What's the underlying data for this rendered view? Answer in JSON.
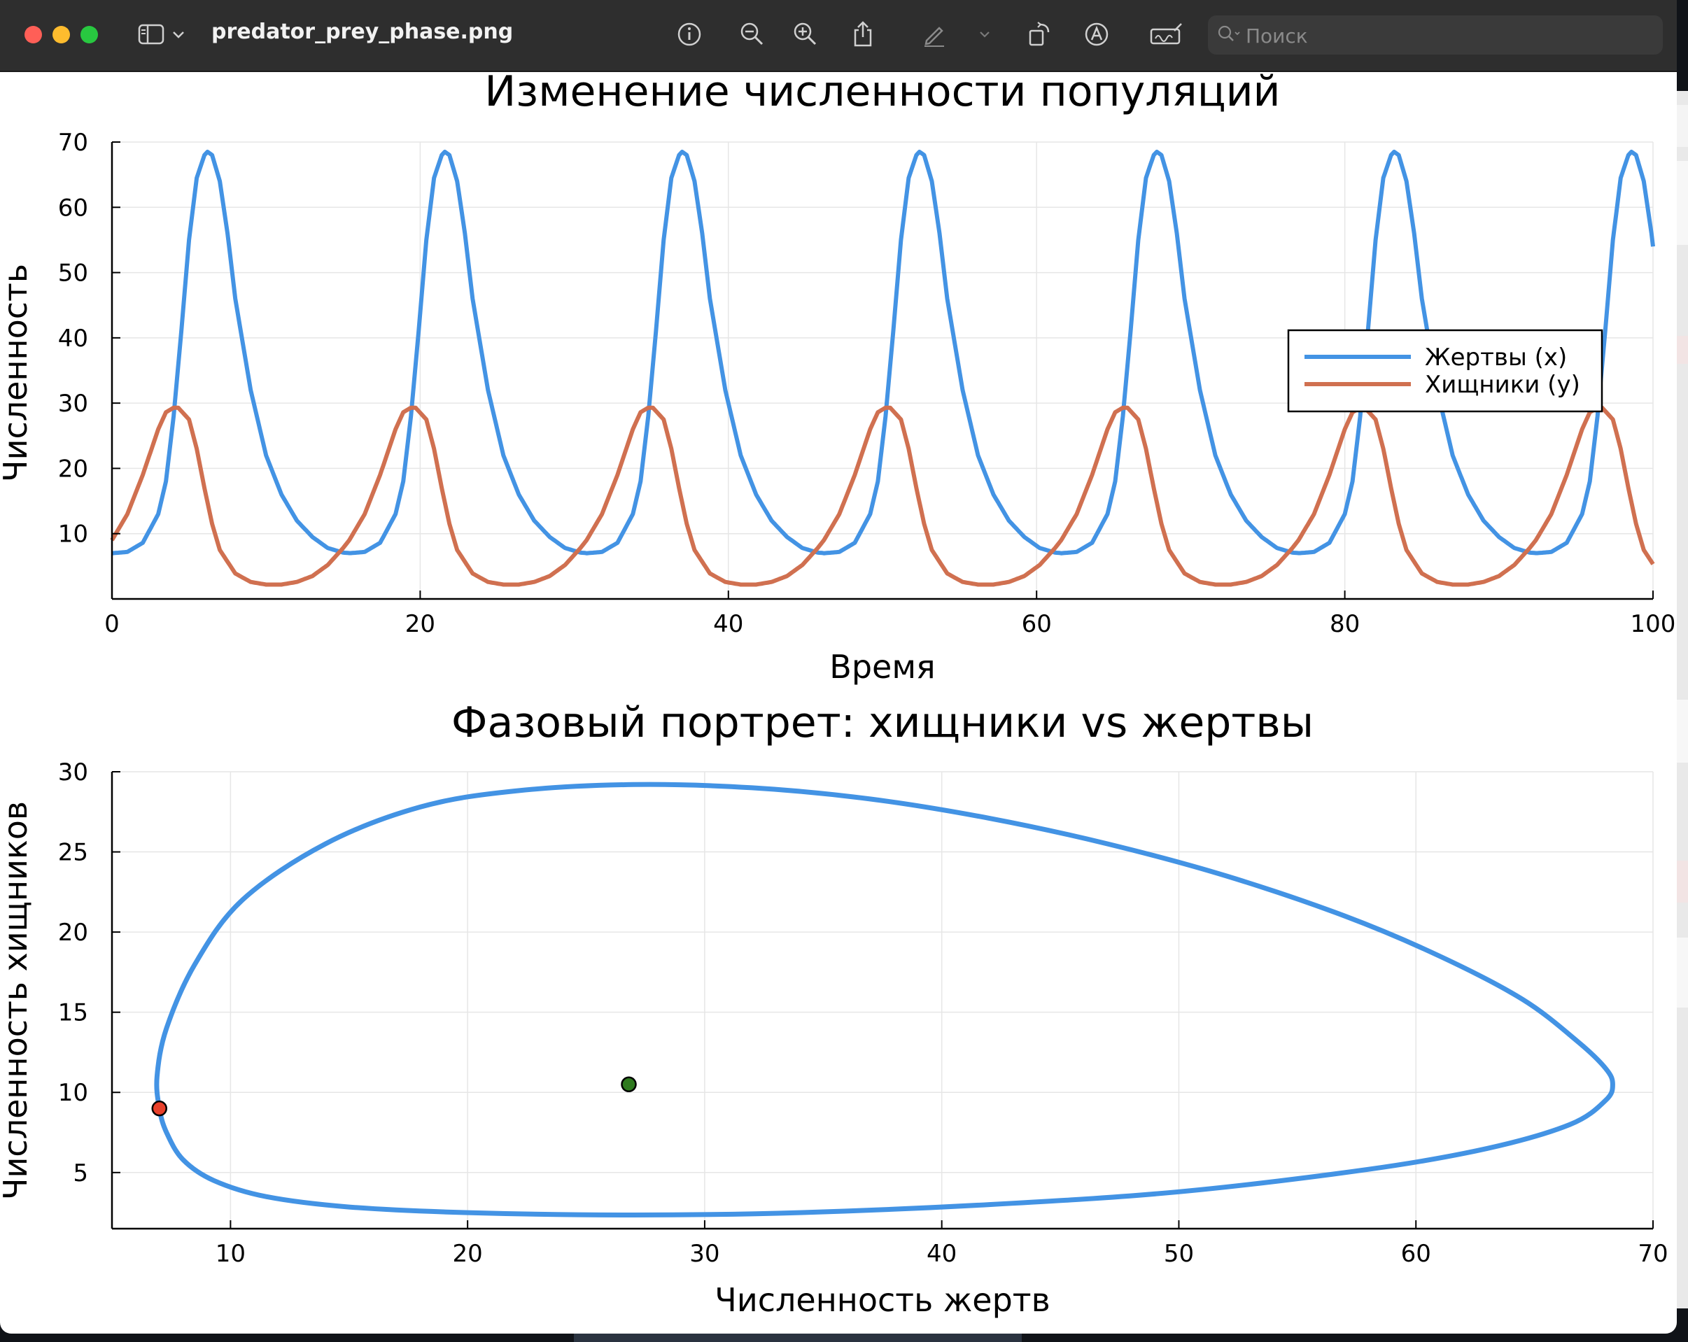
{
  "window": {
    "file_name": "predator_prey_phase.png",
    "search_placeholder": "Поиск"
  },
  "toolbar": {
    "icons": [
      "sidebar-toggle-icon",
      "chevron-down-icon",
      "info-icon",
      "zoom-out-icon",
      "zoom-in-icon",
      "share-icon",
      "markup-pen-icon",
      "rotate-icon",
      "markup-circle-a-icon",
      "signature-icon",
      "search-icon"
    ]
  },
  "colors": {
    "prey": "#4393e4",
    "predator": "#d07050",
    "start_point": "#e8412c",
    "equilibrium_point": "#2f7a1f",
    "titlebar": "#2e2e2e"
  },
  "chart_data": [
    {
      "type": "line",
      "title": "Изменение численности популяций",
      "xlabel": "Время",
      "ylabel": "Численность",
      "xlim": [
        0,
        100
      ],
      "ylim": [
        0,
        70
      ],
      "xticks": [
        0,
        20,
        40,
        60,
        80,
        100
      ],
      "yticks": [
        10,
        20,
        30,
        40,
        50,
        60,
        70
      ],
      "grid": true,
      "legend_position": "right",
      "series": [
        {
          "name": "Жертвы (x)",
          "x": [
            0,
            1,
            2,
            3,
            3.5,
            4,
            4.5,
            5,
            5.5,
            6,
            6.2,
            6.5,
            7,
            7.5,
            8,
            9,
            10,
            11,
            12,
            13,
            14,
            15,
            15.5
          ],
          "y": [
            7.0,
            7.2,
            8.6,
            13.0,
            18.0,
            28.0,
            41.0,
            55.0,
            64.5,
            68.0,
            68.5,
            68.0,
            64.0,
            56.0,
            46.0,
            32.0,
            22.0,
            16.0,
            12.0,
            9.5,
            7.8,
            7.1,
            7.0
          ],
          "period": 15.4
        },
        {
          "name": "Хищники (y)",
          "x": [
            0,
            1,
            2,
            3,
            3.5,
            4,
            4.3,
            5,
            5.5,
            6,
            6.5,
            7,
            8,
            9,
            10,
            11,
            12,
            13,
            14,
            15,
            15.4
          ],
          "y": [
            9.0,
            13.0,
            19.0,
            26.0,
            28.6,
            29.3,
            29.3,
            27.5,
            23.0,
            17.0,
            11.5,
            7.5,
            3.9,
            2.6,
            2.2,
            2.2,
            2.6,
            3.5,
            5.2,
            7.8,
            9.0
          ],
          "period": 15.4
        }
      ]
    },
    {
      "type": "scatter",
      "title": "Фазовый портрет: хищники vs жертвы",
      "xlabel": "Численность жертв",
      "ylabel": "Численность хищников",
      "xlim": [
        5,
        70
      ],
      "ylim": [
        1.5,
        30
      ],
      "xticks": [
        10,
        20,
        30,
        40,
        50,
        60,
        70
      ],
      "yticks": [
        5,
        10,
        15,
        20,
        25,
        30
      ],
      "grid": true,
      "orbit": {
        "x": [
          7.0,
          6.9,
          7.3,
          8.5,
          10.5,
          14.0,
          18.0,
          22.0,
          27.0,
          32.0,
          37.0,
          42.0,
          47.0,
          52.0,
          57.0,
          61.0,
          64.5,
          66.8,
          68.0,
          68.3,
          68.0,
          66.5,
          63.0,
          58.0,
          50.0,
          42.0,
          34.0,
          27.0,
          20.0,
          15.0,
          11.5,
          9.3,
          8.0,
          7.3,
          7.0
        ],
        "y": [
          9.0,
          11.0,
          14.0,
          18.0,
          22.0,
          25.5,
          27.8,
          28.8,
          29.2,
          29.0,
          28.3,
          27.1,
          25.5,
          23.5,
          21.0,
          18.5,
          15.8,
          13.2,
          11.5,
          10.5,
          9.5,
          8.0,
          6.5,
          5.2,
          3.8,
          3.0,
          2.5,
          2.35,
          2.5,
          2.85,
          3.5,
          4.5,
          5.8,
          7.5,
          9.0
        ]
      },
      "points": [
        {
          "x": 7.0,
          "y": 9.0,
          "color": "#e8412c"
        },
        {
          "x": 26.8,
          "y": 10.5,
          "color": "#2f7a1f"
        }
      ]
    }
  ]
}
